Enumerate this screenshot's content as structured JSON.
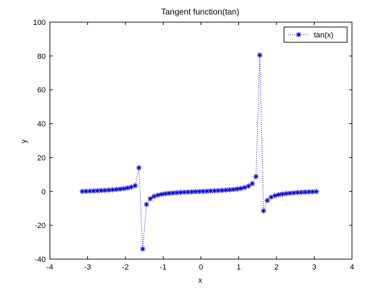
{
  "chart_data": {
    "type": "line",
    "title": "Tangent function(tan)",
    "xlabel": "x",
    "ylabel": "y",
    "xlim": [
      -4,
      4
    ],
    "ylim": [
      -40,
      100
    ],
    "xticks": [
      "-4",
      "-3",
      "-2",
      "-1",
      "0",
      "1",
      "2",
      "3",
      "4"
    ],
    "yticks": [
      "-40",
      "-20",
      "0",
      "20",
      "40",
      "60",
      "80",
      "100"
    ],
    "grid": false,
    "legend_position": "top-right",
    "series": [
      {
        "name": "tan(x)",
        "color": "#0000cc",
        "line_style": "dotted",
        "marker": "asterisk",
        "x": [
          -3.142,
          -3.042,
          -2.942,
          -2.842,
          -2.742,
          -2.642,
          -2.542,
          -2.442,
          -2.342,
          -2.242,
          -2.142,
          -2.042,
          -1.942,
          -1.842,
          -1.742,
          -1.642,
          -1.542,
          -1.442,
          -1.342,
          -1.242,
          -1.142,
          -1.042,
          -0.942,
          -0.842,
          -0.742,
          -0.642,
          -0.542,
          -0.442,
          -0.342,
          -0.242,
          -0.142,
          -0.042,
          0.058,
          0.158,
          0.258,
          0.358,
          0.458,
          0.558,
          0.658,
          0.758,
          0.858,
          0.958,
          1.058,
          1.158,
          1.258,
          1.358,
          1.458,
          1.558,
          1.658,
          1.758,
          1.858,
          1.958,
          2.058,
          2.158,
          2.258,
          2.358,
          2.458,
          2.558,
          2.658,
          2.758,
          2.858,
          2.958,
          3.058
        ],
        "y": [
          0.0,
          0.1,
          0.2,
          0.31,
          0.42,
          0.53,
          0.66,
          0.8,
          0.97,
          1.16,
          1.39,
          1.68,
          2.07,
          2.6,
          3.39,
          14.0,
          -34.0,
          -7.7,
          -4.3,
          -2.9,
          -2.2,
          -1.7,
          -1.37,
          -1.11,
          -0.92,
          -0.75,
          -0.6,
          -0.47,
          -0.36,
          -0.25,
          -0.14,
          -0.04,
          0.06,
          0.16,
          0.26,
          0.37,
          0.49,
          0.62,
          0.77,
          0.94,
          1.16,
          1.43,
          1.79,
          2.3,
          3.1,
          4.6,
          8.8,
          80.5,
          -11.5,
          -5.3,
          -3.4,
          -2.5,
          -1.95,
          -1.56,
          -1.26,
          -1.02,
          -0.82,
          -0.66,
          -0.52,
          -0.39,
          -0.29,
          -0.19,
          -0.08
        ]
      }
    ]
  }
}
